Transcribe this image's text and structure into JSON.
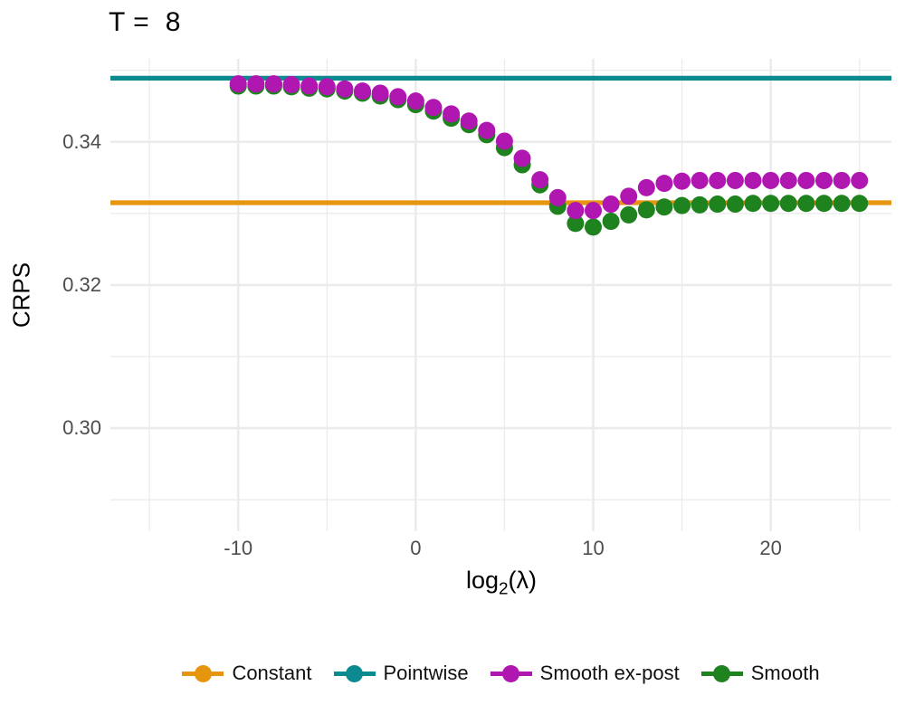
{
  "figure": {
    "title": "T =  8"
  },
  "axes": {
    "y_title": "CRPS",
    "x_title": {
      "base": "log",
      "sub": "2",
      "arg": "(λ)"
    }
  },
  "chart_data": {
    "type": "scatter",
    "title": "T =  8",
    "xlabel": "log2(lambda)",
    "ylabel": "CRPS",
    "xlim": [
      -17.2,
      26.8
    ],
    "ylim": [
      0.2856,
      0.3516
    ],
    "grid": {
      "color": "#ebebeb",
      "x_major": [
        -10,
        0,
        10,
        20
      ],
      "x_minor": [
        -15,
        -5,
        5,
        15,
        25
      ],
      "y_major": [
        0.3,
        0.32,
        0.34
      ],
      "y_minor": [
        0.29,
        0.31,
        0.33,
        0.35
      ]
    },
    "x_ticks": {
      "values": [
        -10,
        0,
        10,
        20
      ],
      "labels": [
        "-10",
        "0",
        "10",
        "20"
      ]
    },
    "y_ticks": {
      "values": [
        0.34,
        0.32,
        0.3
      ],
      "labels": [
        "0.34",
        "0.32",
        "0.30"
      ]
    },
    "hlines": [
      {
        "name": "Pointwise",
        "y": 0.3489,
        "color": "#0b8a8f"
      },
      {
        "name": "Constant",
        "y": 0.3315,
        "color": "#e6950e"
      }
    ],
    "series": [
      {
        "name": "Smooth",
        "color": "#1e821e",
        "x": [
          -10,
          -9,
          -8,
          -7,
          -6,
          -5,
          -4,
          -3,
          -2,
          -1,
          0,
          1,
          2,
          3,
          4,
          5,
          6,
          7,
          8,
          9,
          10,
          11,
          12,
          13,
          14,
          15,
          16,
          17,
          18,
          19,
          20,
          21,
          22,
          23,
          24,
          25
        ],
        "y": [
          0.3478,
          0.3478,
          0.3478,
          0.3477,
          0.3475,
          0.3474,
          0.3471,
          0.3468,
          0.3464,
          0.3459,
          0.3452,
          0.3443,
          0.3433,
          0.3424,
          0.341,
          0.3392,
          0.3368,
          0.334,
          0.331,
          0.3286,
          0.3281,
          0.3289,
          0.3298,
          0.3305,
          0.3309,
          0.3311,
          0.3312,
          0.3313,
          0.3313,
          0.3314,
          0.3314,
          0.3314,
          0.3314,
          0.3314,
          0.3314,
          0.3314
        ]
      },
      {
        "name": "Smooth ex-post",
        "color": "#b016b0",
        "x": [
          -10,
          -9,
          -8,
          -7,
          -6,
          -5,
          -4,
          -3,
          -2,
          -1,
          0,
          1,
          2,
          3,
          4,
          5,
          6,
          7,
          8,
          9,
          10,
          11,
          12,
          13,
          14,
          15,
          16,
          17,
          18,
          19,
          20,
          21,
          22,
          23,
          24,
          25
        ],
        "y": [
          0.3481,
          0.3481,
          0.3481,
          0.348,
          0.3478,
          0.3477,
          0.3474,
          0.3471,
          0.3468,
          0.3463,
          0.3457,
          0.3448,
          0.3439,
          0.3429,
          0.3416,
          0.3401,
          0.3377,
          0.3347,
          0.3322,
          0.3304,
          0.3304,
          0.3313,
          0.3324,
          0.3336,
          0.3342,
          0.3345,
          0.3346,
          0.3346,
          0.3346,
          0.3346,
          0.3346,
          0.3346,
          0.3346,
          0.3346,
          0.3346,
          0.3346
        ]
      }
    ],
    "point_radius": 9.5,
    "line_width": 5.2,
    "legend": {
      "position": "bottom",
      "items": [
        {
          "label": "Constant",
          "color": "#e6950e"
        },
        {
          "label": "Pointwise",
          "color": "#0b8a8f"
        },
        {
          "label": "Smooth ex-post",
          "color": "#b016b0"
        },
        {
          "label": "Smooth",
          "color": "#1e821e"
        }
      ]
    }
  }
}
